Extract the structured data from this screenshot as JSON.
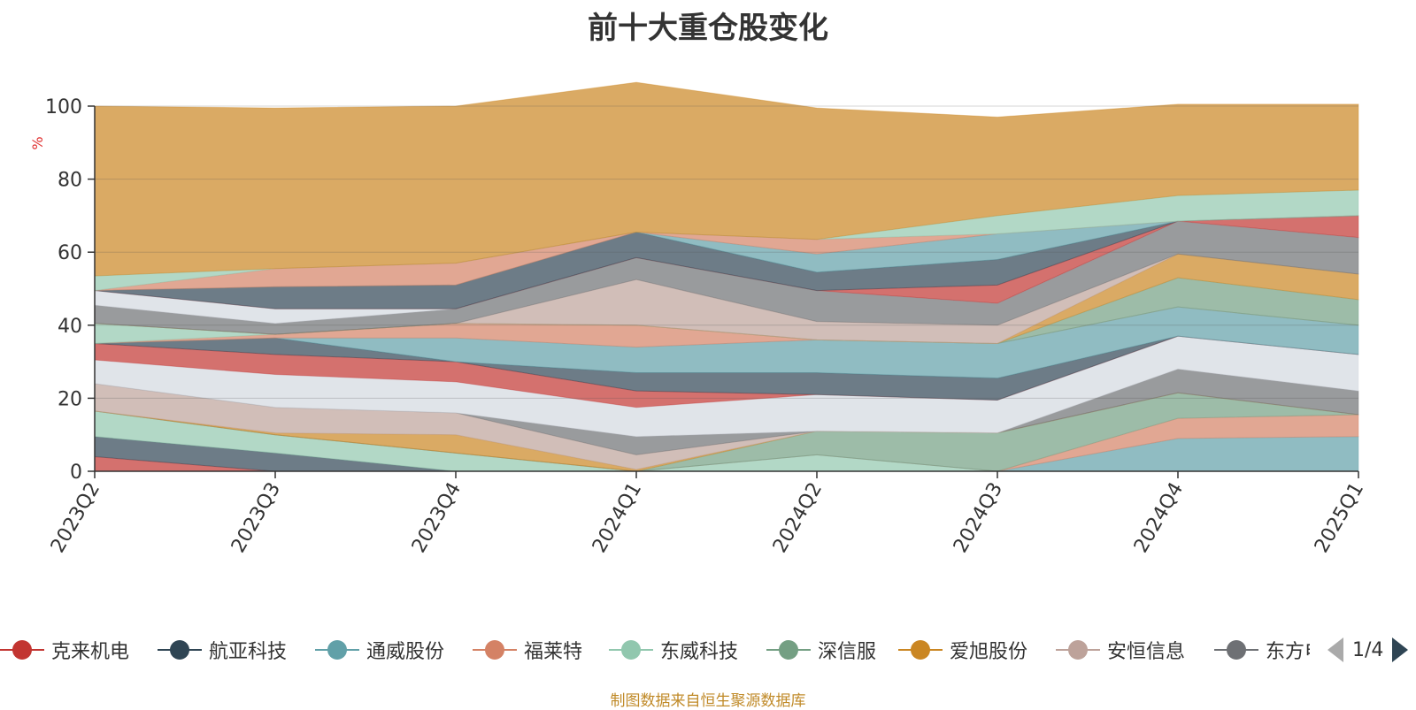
{
  "title": "前十大重仓股变化",
  "source_note": "制图数据来自恒生聚源数据库",
  "pager": {
    "text": "1/4"
  },
  "legend": [
    {
      "name": "克来机电",
      "color": "#c23531"
    },
    {
      "name": "航亚科技",
      "color": "#2f4554"
    },
    {
      "name": "通威股份",
      "color": "#61a0a8"
    },
    {
      "name": "福莱特",
      "color": "#d48265"
    },
    {
      "name": "东威科技",
      "color": "#91c7ae"
    },
    {
      "name": "深信服",
      "color": "#749f83"
    },
    {
      "name": "爱旭股份",
      "color": "#ca8622"
    },
    {
      "name": "安恒信息",
      "color": "#bda29a"
    },
    {
      "name": "东方电",
      "color": "#6e7074"
    }
  ],
  "chart_data": {
    "type": "area",
    "stacked": true,
    "title": "前十大重仓股变化",
    "ylabel": "%",
    "ylim": [
      0,
      100
    ],
    "yticks": [
      0,
      20,
      40,
      60,
      80,
      100
    ],
    "categories": [
      "2023Q2",
      "2023Q3",
      "2023Q4",
      "2024Q1",
      "2024Q2",
      "2024Q3",
      "2024Q4",
      "2025Q1"
    ],
    "series": [
      {
        "color": "#c23531",
        "values": [
          4,
          0,
          0,
          0,
          0,
          0,
          0,
          0
        ]
      },
      {
        "color": "#2f4554",
        "values": [
          5.5,
          5,
          0,
          0,
          0,
          0,
          0,
          0
        ]
      },
      {
        "color": "#91c7ae",
        "values": [
          7,
          5,
          5,
          0,
          4.5,
          0,
          0,
          0
        ]
      },
      {
        "color": "#61a0a8",
        "values": [
          0,
          0,
          0,
          0,
          0,
          0,
          9,
          9.5
        ]
      },
      {
        "color": "#d48265",
        "values": [
          0,
          0,
          0,
          0,
          0,
          0,
          5.5,
          6
        ]
      },
      {
        "color": "#749f83",
        "values": [
          0,
          0,
          0,
          0,
          6.5,
          10.5,
          7,
          0
        ]
      },
      {
        "color": "#ca8622",
        "values": [
          0,
          0.5,
          5,
          0.5,
          0,
          0,
          0,
          0
        ]
      },
      {
        "color": "#bda29a",
        "values": [
          7.5,
          7,
          6,
          4,
          0,
          0,
          0,
          0
        ]
      },
      {
        "color": "#6e7074",
        "values": [
          0,
          0,
          0,
          5,
          0,
          0,
          6.5,
          6.5
        ]
      },
      {
        "color": "#d3d8df",
        "values": [
          6.5,
          9,
          8.5,
          8,
          10,
          9,
          9,
          10
        ]
      },
      {
        "color": "#c23531",
        "values": [
          4.5,
          5.5,
          5.5,
          4.5,
          0,
          0,
          0,
          0
        ]
      },
      {
        "color": "#2f4554",
        "values": [
          0,
          4.5,
          0,
          5,
          6,
          6,
          0,
          0
        ]
      },
      {
        "color": "#61a0a8",
        "values": [
          0,
          0,
          6.5,
          7,
          9,
          9.5,
          8,
          8
        ]
      },
      {
        "color": "#d48265",
        "values": [
          0,
          1,
          4,
          6,
          0,
          0,
          0,
          0
        ]
      },
      {
        "color": "#91c7ae",
        "values": [
          5.5,
          0,
          0,
          0,
          0,
          0,
          0,
          0
        ]
      },
      {
        "color": "#749f83",
        "values": [
          0,
          0,
          0,
          0,
          0,
          0,
          8,
          7
        ]
      },
      {
        "color": "#ca8622",
        "values": [
          0,
          0,
          0,
          0,
          0,
          0,
          6.5,
          7
        ]
      },
      {
        "color": "#bda29a",
        "values": [
          0,
          0,
          0,
          12.5,
          5,
          5,
          0,
          0
        ]
      },
      {
        "color": "#6e7074",
        "values": [
          5,
          3,
          4,
          6,
          8.5,
          6,
          9,
          10
        ]
      },
      {
        "color": "#d3d8df",
        "values": [
          4,
          4,
          0,
          0,
          0,
          0,
          0,
          0
        ]
      },
      {
        "color": "#c23531",
        "values": [
          0,
          0,
          0,
          0,
          0,
          5,
          0,
          6
        ]
      },
      {
        "color": "#2f4554",
        "values": [
          0,
          6,
          6.5,
          7,
          5,
          7,
          0,
          0
        ]
      },
      {
        "color": "#61a0a8",
        "values": [
          0,
          0,
          0,
          0,
          5,
          7,
          0,
          0
        ]
      },
      {
        "color": "#d48265",
        "values": [
          0,
          5,
          6,
          0,
          4,
          0,
          0,
          0
        ]
      },
      {
        "color": "#91c7ae",
        "values": [
          4,
          0,
          0,
          0,
          0,
          5,
          7,
          7
        ]
      },
      {
        "color": "#ca8622",
        "values": [
          46.5,
          44,
          43,
          41,
          36,
          27,
          25,
          23.5
        ]
      }
    ]
  }
}
